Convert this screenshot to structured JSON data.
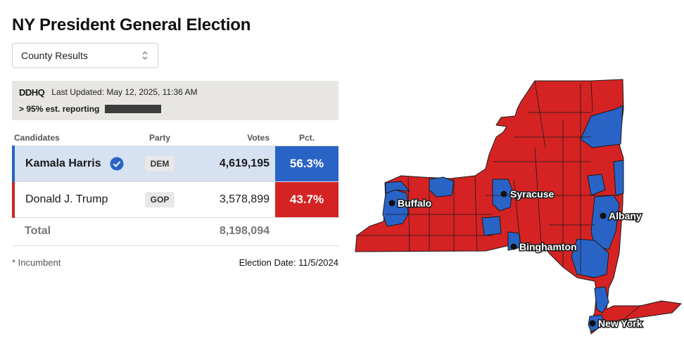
{
  "page": {
    "title": "NY President General Election"
  },
  "view_select": {
    "value": "County Results"
  },
  "status": {
    "logo": "DDHQ",
    "last_updated": "Last Updated: May 12, 2025, 11:36 AM",
    "reporting": "> 95% est. reporting"
  },
  "table": {
    "headers": {
      "candidates": "Candidates",
      "party": "Party",
      "votes": "Votes",
      "pct": "Pct."
    },
    "rows": [
      {
        "name": "Kamala Harris",
        "party": "DEM",
        "votes": "4,619,195",
        "pct": "56.3%",
        "winner": true
      },
      {
        "name": "Donald J. Trump",
        "party": "GOP",
        "votes": "3,578,899",
        "pct": "43.7%",
        "winner": false
      }
    ],
    "total": {
      "label": "Total",
      "votes": "8,198,094"
    }
  },
  "footer": {
    "incumbent_note": "* Incumbent",
    "election_date": "Election Date: 11/5/2024"
  },
  "colors": {
    "dem": "#2a63c6",
    "gop": "#d52323",
    "dem_row": "#d6e1f1"
  },
  "map": {
    "cities": [
      "Buffalo",
      "Syracuse",
      "Albany",
      "Binghamton",
      "New York"
    ]
  }
}
